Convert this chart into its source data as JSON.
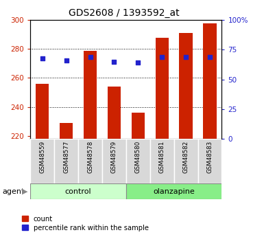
{
  "title": "GDS2608 / 1393592_at",
  "samples": [
    "GSM48559",
    "GSM48577",
    "GSM48578",
    "GSM48579",
    "GSM48580",
    "GSM48581",
    "GSM48582",
    "GSM48583"
  ],
  "counts": [
    256,
    229,
    279,
    254,
    236,
    288,
    291,
    298
  ],
  "percentile_ranks": [
    68,
    66,
    69,
    65,
    64,
    69,
    69,
    69
  ],
  "group_labels": [
    "control",
    "olanzapine"
  ],
  "group_colors": [
    "#ccffcc",
    "#88ee88"
  ],
  "ylim_left": [
    218,
    300
  ],
  "ylim_right": [
    0,
    100
  ],
  "yticks_left": [
    220,
    240,
    260,
    280,
    300
  ],
  "yticks_right": [
    0,
    25,
    50,
    75,
    100
  ],
  "ytick_labels_right": [
    "0",
    "25",
    "50",
    "75",
    "100%"
  ],
  "bar_color": "#cc2200",
  "dot_color": "#2222cc",
  "bar_bottom": 218,
  "legend_items": [
    "count",
    "percentile rank within the sample"
  ],
  "agent_label": "agent",
  "background_color": "#ffffff"
}
